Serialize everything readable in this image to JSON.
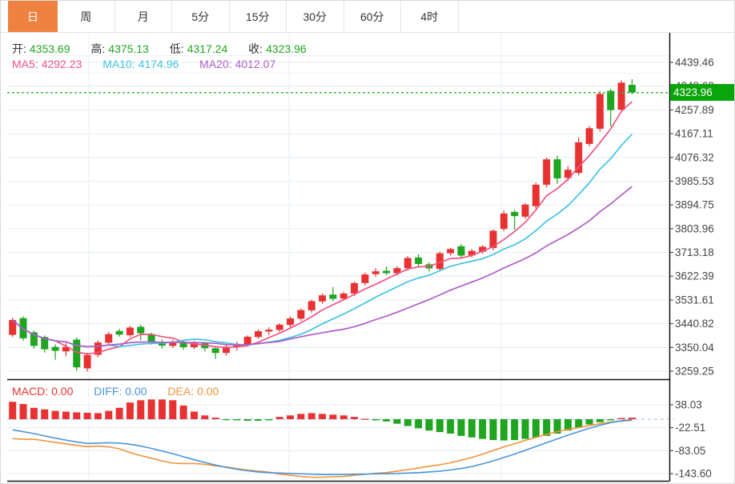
{
  "tabs": {
    "items": [
      {
        "label": "日",
        "active": true
      },
      {
        "label": "周",
        "active": false
      },
      {
        "label": "月",
        "active": false
      },
      {
        "label": "5分",
        "active": false
      },
      {
        "label": "15分",
        "active": false
      },
      {
        "label": "30分",
        "active": false
      },
      {
        "label": "60分",
        "active": false
      },
      {
        "label": "4时",
        "active": false
      }
    ]
  },
  "ohlc_bar": {
    "open_label": "开:",
    "open": "4353.69",
    "high_label": "高:",
    "high": "4375.13",
    "low_label": "低:",
    "low": "4317.24",
    "close_label": "收:",
    "close": "4323.96"
  },
  "ma_bar": {
    "ma5_label": "MA5:",
    "ma5": "4292.23",
    "ma10_label": "MA10:",
    "ma10": "4174.96",
    "ma20_label": "MA20:",
    "ma20": "4012.07"
  },
  "macd_bar": {
    "macd_label": "MACD:",
    "macd": "0.00",
    "diff_label": "DIFF:",
    "diff": "0.00",
    "dea_label": "DEA:",
    "dea": "0.00"
  },
  "price_badge": "4323.96",
  "colors": {
    "accent_orange": "#ef8240",
    "up_red": "#e83232",
    "down_green": "#1fa51f",
    "badge_green": "#0aa50a",
    "ma5_pink": "#f05380",
    "ma10_cyan": "#3fc3e1",
    "ma20_purple": "#b15bc7",
    "diff_blue": "#4a95dd",
    "dea_orange": "#f29339",
    "grid": "#e4ecf6",
    "axis_text": "#444444",
    "price_dash_green": "#3cb83c",
    "zero_dash_blue": "#a5cdea",
    "border_black": "#111111",
    "row_rule": "#f1f1f1"
  },
  "chart_data": {
    "type": "candlestick",
    "title": "Daily candlestick chart with MA5/MA10/MA20 and MACD",
    "y_axis_labels": [
      "4439.46",
      "4348.68",
      "4257.89",
      "4167.11",
      "4076.32",
      "3985.53",
      "3894.75",
      "3803.96",
      "3713.18",
      "3622.39",
      "3531.61",
      "3440.82",
      "3350.04",
      "3259.25"
    ],
    "y_axis_top_value": 4439.46,
    "y_axis_step": 90.785,
    "macd_axis_labels": [
      "38.03",
      "-22.51",
      "-83.05",
      "-143.60"
    ],
    "macd_axis_values": [
      38.03,
      -22.51,
      -83.05,
      -143.6
    ],
    "price_line_value": 4323.96,
    "ma_periods": [
      5,
      10,
      20
    ],
    "candles": [
      [
        3398,
        3463,
        3390,
        3455
      ],
      [
        3462,
        3469,
        3376,
        3385
      ],
      [
        3408,
        3414,
        3346,
        3356
      ],
      [
        3390,
        3396,
        3330,
        3343
      ],
      [
        3352,
        3362,
        3303,
        3337
      ],
      [
        3335,
        3367,
        3316,
        3352
      ],
      [
        3380,
        3388,
        3262,
        3274
      ],
      [
        3270,
        3330,
        3258,
        3321
      ],
      [
        3322,
        3377,
        3312,
        3369
      ],
      [
        3368,
        3409,
        3358,
        3401
      ],
      [
        3413,
        3421,
        3391,
        3399
      ],
      [
        3397,
        3433,
        3390,
        3426
      ],
      [
        3429,
        3437,
        3378,
        3404
      ],
      [
        3401,
        3407,
        3361,
        3371
      ],
      [
        3371,
        3381,
        3346,
        3357
      ],
      [
        3356,
        3379,
        3348,
        3371
      ],
      [
        3370,
        3376,
        3341,
        3351
      ],
      [
        3351,
        3375,
        3344,
        3367
      ],
      [
        3366,
        3371,
        3335,
        3347
      ],
      [
        3347,
        3355,
        3307,
        3329
      ],
      [
        3329,
        3361,
        3319,
        3353
      ],
      [
        3352,
        3372,
        3338,
        3364
      ],
      [
        3363,
        3396,
        3354,
        3391
      ],
      [
        3390,
        3419,
        3383,
        3412
      ],
      [
        3411,
        3427,
        3397,
        3418
      ],
      [
        3417,
        3442,
        3409,
        3437
      ],
      [
        3436,
        3468,
        3427,
        3461
      ],
      [
        3460,
        3499,
        3451,
        3493
      ],
      [
        3492,
        3533,
        3483,
        3527
      ],
      [
        3526,
        3556,
        3517,
        3549
      ],
      [
        3552,
        3581,
        3527,
        3536
      ],
      [
        3537,
        3563,
        3529,
        3556
      ],
      [
        3556,
        3601,
        3547,
        3596
      ],
      [
        3596,
        3637,
        3587,
        3629
      ],
      [
        3630,
        3653,
        3621,
        3641
      ],
      [
        3643,
        3659,
        3627,
        3634
      ],
      [
        3634,
        3661,
        3625,
        3653
      ],
      [
        3653,
        3699,
        3644,
        3692
      ],
      [
        3694,
        3706,
        3660,
        3669
      ],
      [
        3668,
        3676,
        3640,
        3652
      ],
      [
        3650,
        3716,
        3643,
        3710
      ],
      [
        3710,
        3731,
        3701,
        3726
      ],
      [
        3737,
        3745,
        3692,
        3701
      ],
      [
        3702,
        3726,
        3694,
        3719
      ],
      [
        3716,
        3741,
        3708,
        3735
      ],
      [
        3730,
        3801,
        3721,
        3796
      ],
      [
        3803,
        3873,
        3794,
        3862
      ],
      [
        3868,
        3876,
        3800,
        3852
      ],
      [
        3850,
        3902,
        3842,
        3896
      ],
      [
        3890,
        3980,
        3881,
        3972
      ],
      [
        3972,
        4076,
        3961,
        4069
      ],
      [
        4069,
        4083,
        3975,
        3996
      ],
      [
        3998,
        4043,
        3987,
        4029
      ],
      [
        4017,
        4153,
        4007,
        4134
      ],
      [
        4128,
        4196,
        4119,
        4188
      ],
      [
        4186,
        4330,
        4175,
        4319
      ],
      [
        4331,
        4339,
        4195,
        4257
      ],
      [
        4259,
        4371,
        4250,
        4362
      ],
      [
        4353.69,
        4375.13,
        4317.24,
        4323.96
      ]
    ],
    "macd": {
      "hist": [
        46,
        40,
        30,
        26,
        22,
        20,
        18,
        17,
        16,
        22,
        30,
        44,
        50,
        52,
        52,
        50,
        36,
        20,
        10,
        4,
        -2,
        -3,
        -4,
        -4,
        -3,
        6,
        10,
        14,
        16,
        14,
        12,
        10,
        6,
        1,
        -3,
        -6,
        -12,
        -18,
        -24,
        -30,
        -34,
        -38,
        -44,
        -48,
        -52,
        -55,
        -56,
        -55,
        -52,
        -48,
        -44,
        -38,
        -30,
        -22,
        -14,
        -8,
        -3,
        3,
        4
      ],
      "diff": [
        -28,
        -33,
        -38,
        -44,
        -50,
        -55,
        -60,
        -64,
        -63,
        -62,
        -63,
        -66,
        -71,
        -77,
        -84,
        -91,
        -99,
        -107,
        -114,
        -121,
        -127,
        -132,
        -136,
        -139,
        -141,
        -142,
        -143,
        -144,
        -145,
        -146,
        -146,
        -146,
        -145,
        -145,
        -144,
        -144,
        -143,
        -142,
        -141,
        -139,
        -137,
        -134,
        -130,
        -125,
        -118,
        -110,
        -101,
        -92,
        -82,
        -72,
        -62,
        -52,
        -42,
        -33,
        -24,
        -16,
        -9,
        -4,
        -1
      ]
    }
  }
}
